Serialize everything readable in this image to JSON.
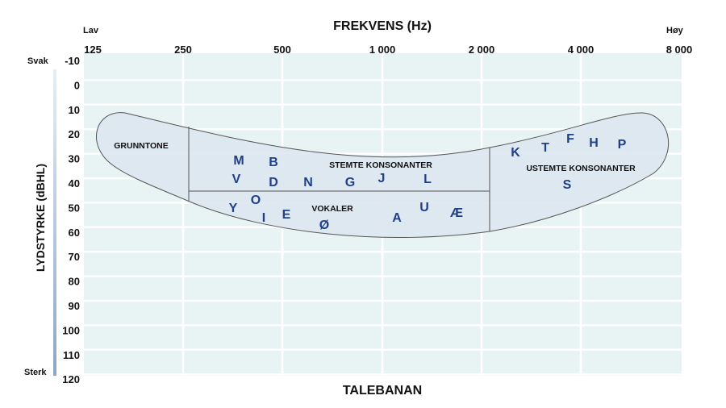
{
  "title": "FREKVENS (Hz)",
  "bottom_title": "TALEBANAN",
  "y_axis_label": "LYDSTYRKE (dBHL)",
  "x_low_label": "Lav",
  "x_high_label": "Høy",
  "y_top_label": "Svak",
  "y_bottom_label": "Sterk",
  "x_ticks": [
    "125",
    "250",
    "500",
    "1 000",
    "2 000",
    "4 000",
    "8 000"
  ],
  "y_ticks": [
    "-10",
    "0",
    "10",
    "20",
    "30",
    "40",
    "50",
    "60",
    "70",
    "80",
    "90",
    "100",
    "110",
    "120"
  ],
  "regions": {
    "fundamental": "GRUNNTONE",
    "voiced": "STEMTE KONSONANTER",
    "vowels": "VOKALER",
    "unvoiced": "USTEMTE KONSONANTER"
  },
  "letters": {
    "voiced": [
      "M",
      "B",
      "V",
      "D",
      "N",
      "G",
      "J",
      "L"
    ],
    "vowels": [
      "Y",
      "O",
      "I",
      "E",
      "Ø",
      "A",
      "U",
      "Æ"
    ],
    "unvoiced": [
      "K",
      "T",
      "F",
      "H",
      "P",
      "S"
    ]
  },
  "colors": {
    "plot_bg": "#e8f3f3",
    "banana_fill": "#dde7f0",
    "letter": "#1f3f86",
    "grid": "#ffffff"
  }
}
